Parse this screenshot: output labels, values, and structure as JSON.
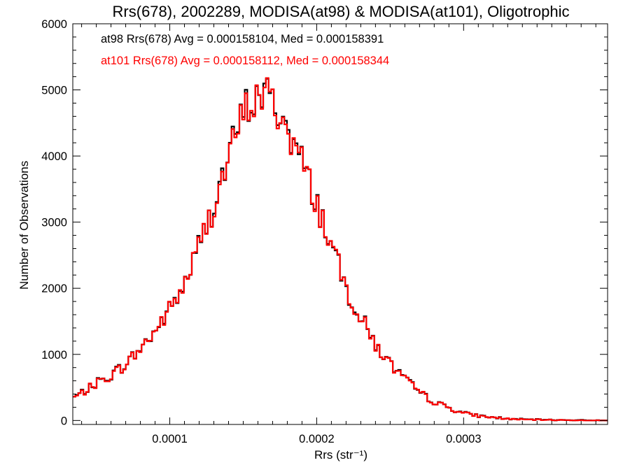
{
  "chart_data": {
    "type": "histogram",
    "title": "Rrs(678), 2002289, MODISA(at98) & MODISA(at101), Oligotrophic",
    "xlabel": "Rrs (str⁻¹)",
    "ylabel": "Number of Observations",
    "xlim": [
      3.4e-05,
      0.000398
    ],
    "ylim": [
      -60,
      6000
    ],
    "x_ticks": [
      {
        "value": 0.0001,
        "label": "0.0001"
      },
      {
        "value": 0.0002,
        "label": "0.0002"
      },
      {
        "value": 0.0003,
        "label": "0.0003"
      }
    ],
    "y_ticks": [
      {
        "value": 0,
        "label": "0"
      },
      {
        "value": 1000,
        "label": "1000"
      },
      {
        "value": 2000,
        "label": "2000"
      },
      {
        "value": 3000,
        "label": "3000"
      },
      {
        "value": 4000,
        "label": "4000"
      },
      {
        "value": 5000,
        "label": "5000"
      },
      {
        "value": 6000,
        "label": "6000"
      }
    ],
    "bin_width": 1.8e-06,
    "series": [
      {
        "name": "at98",
        "color": "#000000",
        "stats_label": "at98 Rrs(678) Avg = 0.000158104, Med = 0.000158391"
      },
      {
        "name": "at101",
        "color": "#ff0000",
        "stats_label": "at101 Rrs(678) Avg = 0.000158112, Med = 0.000158344"
      }
    ],
    "anchor_points": {
      "x": [
        3.4e-05,
        4e-05,
        5e-05,
        6e-05,
        7e-05,
        8e-05,
        9e-05,
        0.0001,
        0.00011,
        0.00012,
        0.00013,
        0.00014,
        0.00015,
        0.000158,
        0.000165,
        0.00017,
        0.00018,
        0.00019,
        0.0002,
        0.00021,
        0.00022,
        0.00023,
        0.00024,
        0.00025,
        0.00026,
        0.00027,
        0.00028,
        0.00029,
        0.0003,
        0.00031,
        0.00032,
        0.00033,
        0.00034,
        0.00036,
        0.00038,
        0.000398
      ],
      "y": [
        340,
        410,
        560,
        680,
        850,
        1080,
        1350,
        1680,
        2050,
        2650,
        3250,
        3950,
        4650,
        4850,
        4950,
        4800,
        4400,
        3900,
        3300,
        2650,
        2000,
        1550,
        1150,
        850,
        620,
        420,
        280,
        190,
        110,
        70,
        45,
        25,
        15,
        8,
        3,
        0
      ]
    },
    "grid": false,
    "legend": "top-left"
  }
}
